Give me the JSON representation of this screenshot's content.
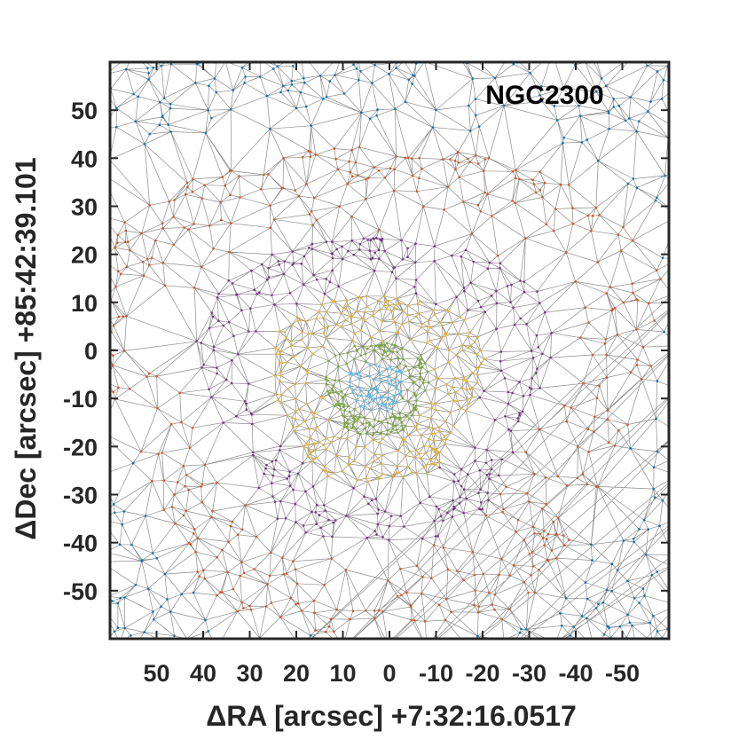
{
  "chart_data": {
    "type": "scatter",
    "title": "NGC2300",
    "xlabel": "ΔRA [arcsec] +7:32:16.0517",
    "ylabel": "ΔDec [arcsec] +85:42:39.101",
    "xlim": [
      60,
      -60
    ],
    "ylim": [
      -60,
      60
    ],
    "x_reversed": true,
    "xticks": [
      50,
      40,
      30,
      20,
      10,
      0,
      -10,
      -20,
      -30,
      -40,
      -50
    ],
    "yticks": [
      50,
      40,
      30,
      20,
      10,
      0,
      -10,
      -20,
      -30,
      -40,
      -50
    ],
    "grid": false,
    "legend": "none",
    "mesh": "Delaunay triangulation of point positions, grey edges",
    "center": [
      3,
      -8
    ],
    "series": [
      {
        "color": "#4DBEEE",
        "r_range": [
          0,
          6
        ],
        "count": 90
      },
      {
        "color": "#77AC30",
        "r_range": [
          6,
          11
        ],
        "count": 200
      },
      {
        "color": "#EDB120",
        "r_range": [
          11,
          22
        ],
        "count": 320
      },
      {
        "color": "#7E2F8E",
        "r_range": [
          22,
          36
        ],
        "count": 300
      },
      {
        "color": "#D95319",
        "r_range": [
          36,
          58
        ],
        "count": 420
      },
      {
        "color": "#0072BD",
        "r_range": [
          58,
          110
        ],
        "count": 260
      }
    ],
    "edge_color": "#8c8c8c"
  }
}
